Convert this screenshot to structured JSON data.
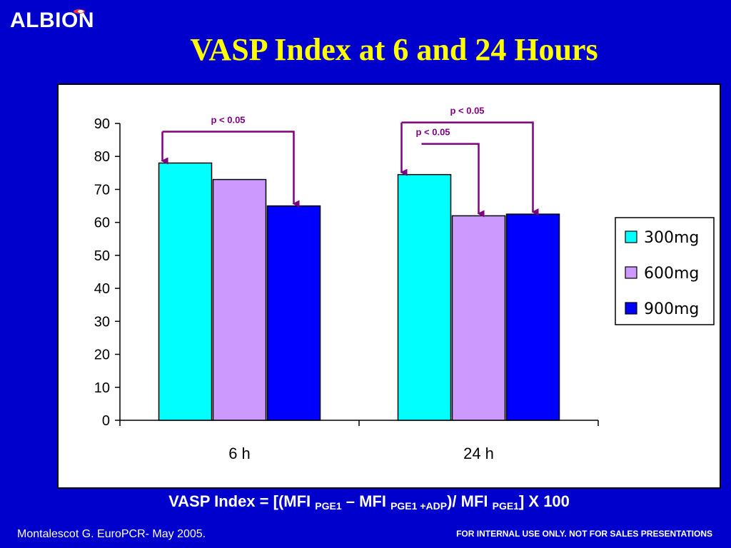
{
  "header": {
    "logo_text": "ALBION",
    "title": "VASP Index at 6 and 24 Hours"
  },
  "chart_data": {
    "type": "bar",
    "categories": [
      "6 h",
      "24 h"
    ],
    "series": [
      {
        "name": "300mg",
        "values": [
          78,
          74.5
        ],
        "color": "#00ffff"
      },
      {
        "name": "600mg",
        "values": [
          73,
          62
        ],
        "color": "#cc99ff"
      },
      {
        "name": "900mg",
        "values": [
          65,
          62.5
        ],
        "color": "#0000ff"
      }
    ],
    "ylim": [
      0,
      90
    ],
    "yticks": [
      "0",
      "10",
      "20",
      "30",
      "40",
      "50",
      "60",
      "70",
      "80",
      "90"
    ],
    "legend_position": "right",
    "grid": false,
    "annotations": [
      {
        "text": "p < 0.05",
        "category": "6 h",
        "from": "300mg",
        "to": "900mg"
      },
      {
        "text": "p < 0.05",
        "category": "24 h",
        "from": "300mg",
        "to": "900mg"
      },
      {
        "text": "p < 0.05",
        "category": "24 h",
        "from": "300mg",
        "to": "600mg"
      }
    ]
  },
  "footer": {
    "formula": {
      "p1": "VASP Index = [(MFI ",
      "s1": "PGE1",
      "p2": " – MFI ",
      "s2": "PGE1 +ADP",
      "p3": ")/ MFI ",
      "s3": "PGE1",
      "p4": "] X 100"
    },
    "source": "Montalescot G. EuroPCR- May 2005.",
    "disclaimer": "FOR INTERNAL USE ONLY. NOT FOR SALES PRESENTATIONS"
  }
}
